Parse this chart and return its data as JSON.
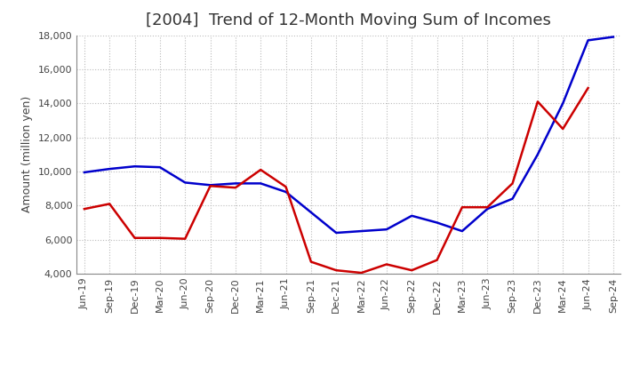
{
  "title": "[2004]  Trend of 12-Month Moving Sum of Incomes",
  "ylabel": "Amount (million yen)",
  "ylim": [
    4000,
    18000
  ],
  "yticks": [
    4000,
    6000,
    8000,
    10000,
    12000,
    14000,
    16000,
    18000
  ],
  "x_labels": [
    "Jun-19",
    "Sep-19",
    "Dec-19",
    "Mar-20",
    "Jun-20",
    "Sep-20",
    "Dec-20",
    "Mar-21",
    "Jun-21",
    "Sep-21",
    "Dec-21",
    "Mar-22",
    "Jun-22",
    "Sep-22",
    "Dec-22",
    "Mar-23",
    "Jun-23",
    "Sep-23",
    "Dec-23",
    "Mar-24",
    "Jun-24",
    "Sep-24"
  ],
  "ordinary_income": [
    9950,
    10150,
    10300,
    10250,
    9350,
    9200,
    9300,
    9300,
    8800,
    7600,
    6400,
    6500,
    6600,
    7400,
    7000,
    6500,
    7800,
    8400,
    11000,
    14000,
    17700,
    17900
  ],
  "net_income": [
    7800,
    8100,
    6100,
    6100,
    6050,
    9150,
    9050,
    10100,
    9100,
    4700,
    4200,
    4050,
    4550,
    4200,
    4800,
    7900,
    7900,
    9300,
    14100,
    12500,
    14900,
    null
  ],
  "ordinary_color": "#0000CC",
  "net_color": "#CC0000",
  "line_width": 1.8,
  "title_fontsize": 13,
  "title_color": "#333333",
  "axis_label_fontsize": 9,
  "tick_fontsize": 8,
  "legend_fontsize": 9,
  "background_color": "#ffffff",
  "grid_color": "#bbbbbb",
  "spine_color": "#888888"
}
